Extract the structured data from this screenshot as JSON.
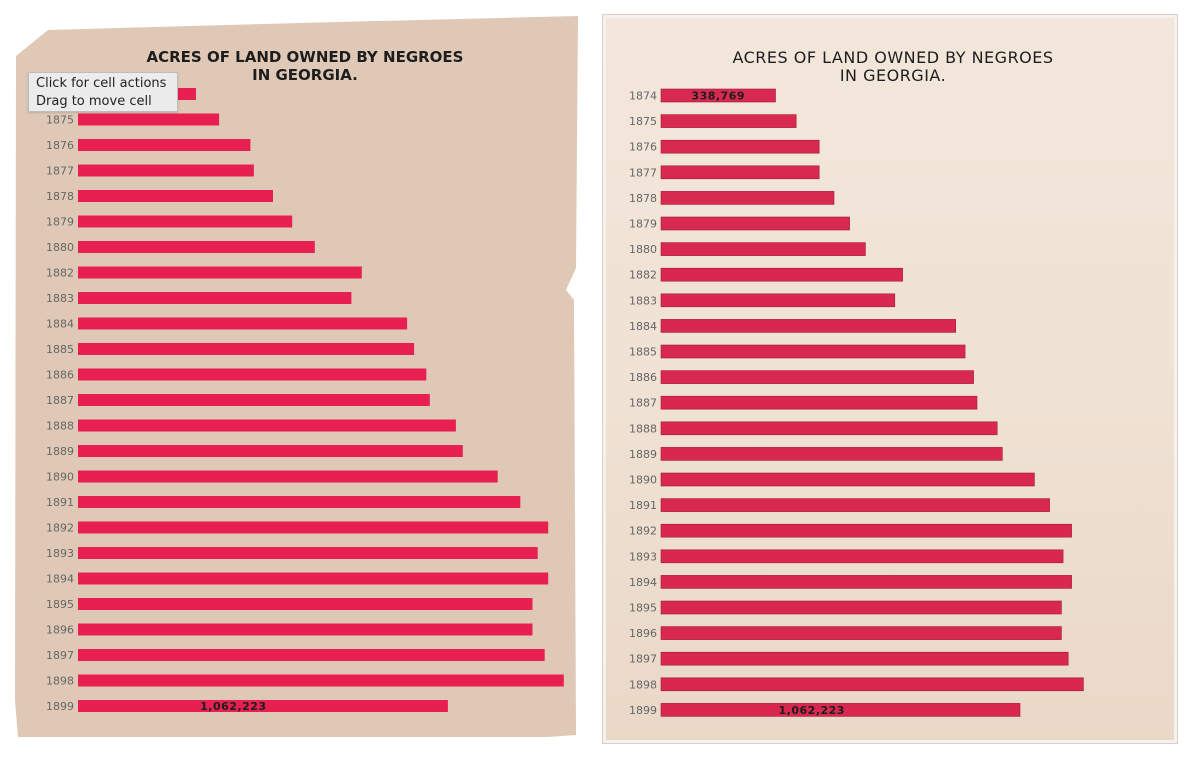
{
  "colors": {
    "bar": "#e8174d",
    "bar_right": "#d71f4a",
    "left_paper": "#dfc8b6",
    "title": "#1d1d1d",
    "year_label": "#666666"
  },
  "tooltip": {
    "line1": "Click for cell actions",
    "line2": "Drag to move cell"
  },
  "chart_data": [
    {
      "type": "bar",
      "orientation": "horizontal",
      "title": "ACRES OF LAND OWNED BY NEGROES\nIN GEORGIA.",
      "categories": [
        "1874",
        "1875",
        "1876",
        "1877",
        "1878",
        "1879",
        "1880",
        "1882",
        "1883",
        "1884",
        "1885",
        "1886",
        "1887",
        "1888",
        "1889",
        "1890",
        "1891",
        "1892",
        "1893",
        "1894",
        "1895",
        "1896",
        "1897",
        "1898",
        "1899"
      ],
      "values": [
        338769,
        405000,
        495000,
        505000,
        560000,
        615000,
        680000,
        815000,
        785000,
        945000,
        965000,
        1000000,
        1010000,
        1085000,
        1105000,
        1205000,
        1270000,
        1350000,
        1320000,
        1350000,
        1305000,
        1305000,
        1340000,
        1395000,
        1062223
      ],
      "data_labels": {
        "1874": "338,769",
        "1899": "1,062,223"
      },
      "bar_color": "#e8174d",
      "xlim": [
        0,
        1450000
      ],
      "grid": false,
      "legend": "none"
    },
    {
      "type": "bar",
      "orientation": "horizontal",
      "title": "ACRES OF LAND OWNED BY NEGROES\nIN GEORGIA.",
      "categories": [
        "1874",
        "1875",
        "1876",
        "1877",
        "1878",
        "1879",
        "1880",
        "1882",
        "1883",
        "1884",
        "1885",
        "1886",
        "1887",
        "1888",
        "1889",
        "1890",
        "1891",
        "1892",
        "1893",
        "1894",
        "1895",
        "1896",
        "1897",
        "1898",
        "1899"
      ],
      "values": [
        338769,
        400000,
        468000,
        468000,
        512000,
        558000,
        605000,
        715000,
        692000,
        872000,
        900000,
        925000,
        935000,
        995000,
        1010000,
        1105000,
        1150000,
        1215000,
        1190000,
        1215000,
        1185000,
        1185000,
        1205000,
        1250000,
        1062223
      ],
      "data_labels": {
        "1874": "338,769",
        "1899": "1,062,223"
      },
      "bar_color": "#d71f4a",
      "xlim": [
        0,
        1450000
      ],
      "grid": false,
      "legend": "none"
    }
  ]
}
